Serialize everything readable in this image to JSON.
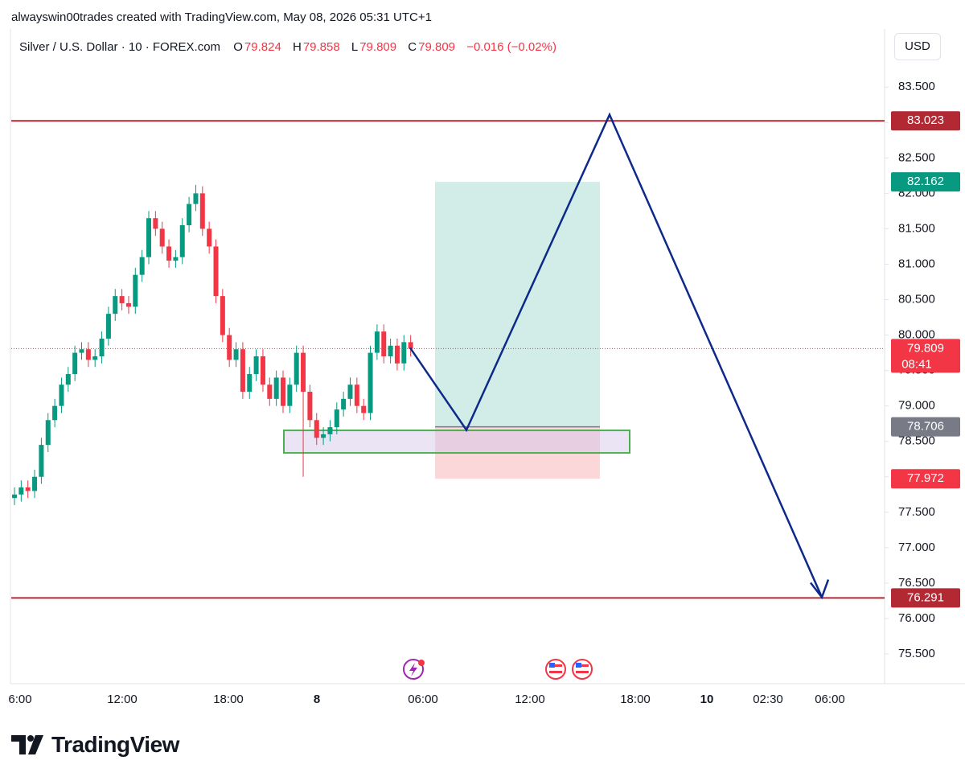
{
  "chart_data": {
    "type": "candlestick",
    "attribution": "alwayswin00trades created with TradingView.com, May 08, 2026 05:31 UTC+1",
    "title": "Silver / U.S. Dollar · 10 · FOREX.com",
    "ohlc_legend": [
      {
        "label": "O",
        "value": 79.824
      },
      {
        "label": "H",
        "value": 79.858
      },
      {
        "label": "L",
        "value": 79.809
      },
      {
        "label": "C",
        "value": 79.809
      }
    ],
    "change_label": "−0.016 (−0.02%)",
    "currency": "USD",
    "brand": "TradingView",
    "ylim": [
      75.08,
      84.32
    ],
    "yticks": [
      {
        "value": 75.5,
        "label": "75.500"
      },
      {
        "value": 76.0,
        "label": "76.000"
      },
      {
        "value": 76.5,
        "label": "76.500"
      },
      {
        "value": 77.0,
        "label": "77.000"
      },
      {
        "value": 77.5,
        "label": "77.500"
      },
      {
        "value": 78.0,
        "label": "78.000"
      },
      {
        "value": 78.5,
        "label": "78.500"
      },
      {
        "value": 79.0,
        "label": "79.000"
      },
      {
        "value": 79.5,
        "label": "79.500"
      },
      {
        "value": 80.0,
        "label": "80.000"
      },
      {
        "value": 80.5,
        "label": "80.500"
      },
      {
        "value": 81.0,
        "label": "81.000"
      },
      {
        "value": 81.5,
        "label": "81.500"
      },
      {
        "value": 82.0,
        "label": "82.000"
      },
      {
        "value": 82.5,
        "label": "82.500"
      },
      {
        "value": 83.0,
        "label": "83.000"
      },
      {
        "value": 83.5,
        "label": "83.500"
      }
    ],
    "x_labels": [
      "6:00",
      "12:00",
      "18:00",
      "8",
      "06:00",
      "12:00",
      "18:00",
      "10",
      "02:30",
      "06:00"
    ],
    "up_color": "#089981",
    "down_color": "#f23645",
    "open": [
      77.7,
      77.75,
      77.85,
      77.8,
      78.0,
      78.45,
      78.8,
      79.0,
      79.3,
      79.45,
      79.75,
      79.8,
      79.65,
      79.7,
      79.95,
      80.3,
      80.55,
      80.45,
      80.4,
      80.85,
      81.1,
      81.65,
      81.5,
      81.25,
      81.05,
      81.1,
      81.55,
      81.85,
      82.0,
      81.5,
      81.25,
      80.55,
      80.0,
      79.65,
      79.8,
      79.2,
      79.45,
      79.7,
      79.3,
      79.1,
      79.4,
      79.0,
      79.3,
      79.75,
      79.2,
      78.8,
      78.55,
      78.6,
      78.7,
      78.95,
      79.1,
      79.3,
      79.0,
      78.9,
      79.75,
      80.05,
      79.7,
      79.85,
      79.6,
      79.9
    ],
    "high": [
      77.85,
      77.95,
      77.95,
      78.1,
      78.55,
      78.9,
      79.1,
      79.4,
      79.55,
      79.85,
      79.9,
      79.9,
      79.8,
      80.05,
      80.4,
      80.65,
      80.65,
      80.55,
      80.95,
      81.2,
      81.75,
      81.75,
      81.6,
      81.35,
      81.2,
      81.65,
      81.95,
      82.12,
      82.1,
      81.6,
      81.35,
      80.65,
      80.1,
      79.9,
      79.9,
      79.55,
      79.8,
      79.8,
      79.4,
      79.5,
      79.5,
      79.4,
      79.85,
      79.85,
      79.3,
      78.9,
      78.7,
      78.8,
      79.05,
      79.2,
      79.4,
      79.4,
      79.1,
      79.85,
      80.15,
      80.15,
      79.95,
      79.95,
      80.0,
      80.0
    ],
    "low": [
      77.6,
      77.65,
      77.7,
      77.7,
      77.9,
      78.35,
      78.7,
      78.9,
      79.2,
      79.35,
      79.65,
      79.55,
      79.55,
      79.6,
      79.85,
      80.2,
      80.35,
      80.3,
      80.3,
      80.75,
      81.0,
      81.4,
      81.15,
      80.95,
      80.95,
      81.0,
      81.45,
      81.75,
      81.4,
      81.15,
      80.45,
      79.9,
      79.55,
      79.55,
      79.1,
      79.1,
      79.35,
      79.2,
      79.0,
      79.0,
      78.9,
      78.9,
      79.2,
      78.0,
      78.7,
      78.45,
      78.45,
      78.5,
      78.6,
      78.85,
      79.0,
      78.9,
      78.8,
      78.8,
      79.65,
      79.6,
      79.6,
      79.5,
      79.5,
      79.7
    ],
    "close": [
      77.75,
      77.85,
      77.8,
      78.0,
      78.45,
      78.8,
      79.0,
      79.3,
      79.45,
      79.75,
      79.8,
      79.65,
      79.7,
      79.95,
      80.3,
      80.55,
      80.45,
      80.4,
      80.85,
      81.1,
      81.65,
      81.5,
      81.25,
      81.05,
      81.1,
      81.55,
      81.85,
      82.0,
      81.5,
      81.25,
      80.55,
      80.0,
      79.65,
      79.8,
      79.2,
      79.45,
      79.7,
      79.3,
      79.1,
      79.4,
      79.0,
      79.3,
      79.75,
      79.2,
      78.8,
      78.55,
      78.6,
      78.7,
      78.95,
      79.1,
      79.3,
      79.0,
      78.9,
      79.75,
      80.05,
      79.7,
      79.85,
      79.6,
      79.9,
      79.809
    ],
    "current_price": {
      "value": 79.809,
      "countdown": "08:41",
      "color": "#f23645"
    },
    "levels": [
      {
        "value": 83.023,
        "color": "#b22833"
      },
      {
        "value": 76.291,
        "color": "#b22833"
      }
    ],
    "position": {
      "entry": 78.706,
      "target": 82.162,
      "stop": 77.972,
      "entry_color": "#787b86",
      "target_color": "#089981",
      "stop_color": "#f23645"
    },
    "zone": [
      78.337,
      78.655
    ],
    "projection": [
      79.82,
      78.66,
      83.11,
      76.3
    ]
  }
}
